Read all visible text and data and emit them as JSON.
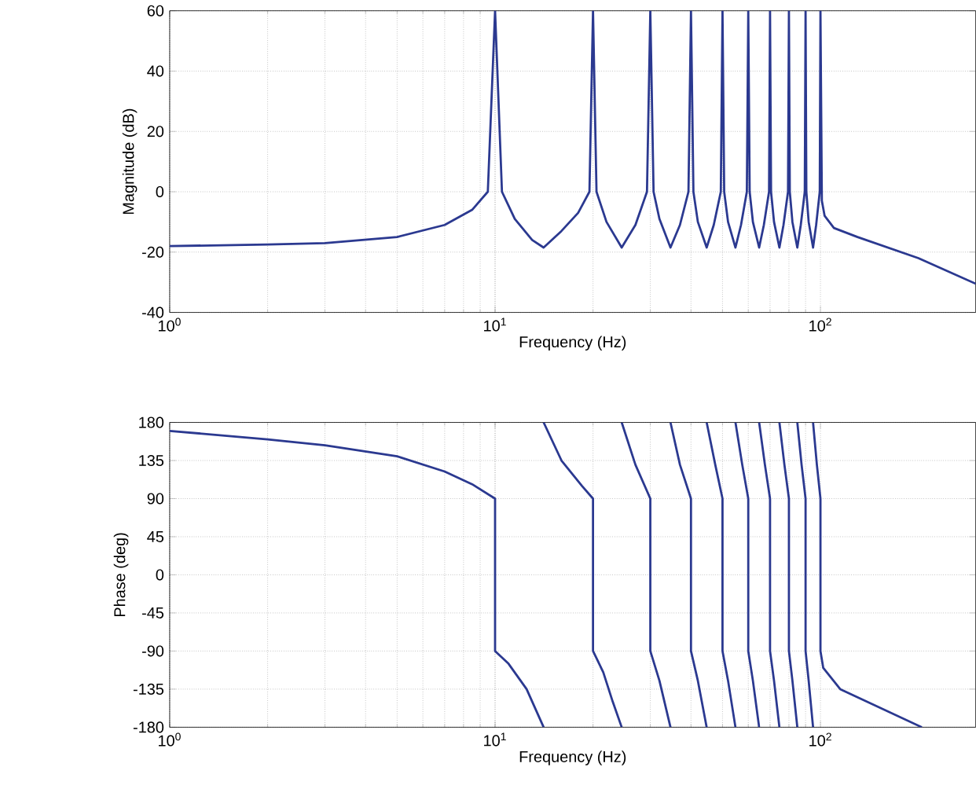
{
  "chart_data": [
    {
      "type": "line",
      "xlabel": "Frequency (Hz)",
      "ylabel": "Magnitude (dB)",
      "log": "x",
      "grid": true,
      "xlim": [
        1,
        300
      ],
      "ylim": [
        -40,
        60
      ],
      "xticks": [
        {
          "value": 1,
          "label": "10$^{0}$"
        },
        {
          "value": 10,
          "label": "10$^{1}$"
        },
        {
          "value": 100,
          "label": "10$^{2}$"
        }
      ],
      "yticks": [
        -40,
        -20,
        0,
        20,
        40,
        60
      ],
      "series": [
        {
          "color": "#2b3990",
          "x": [
            1,
            2,
            3,
            5,
            7,
            8.5,
            9.5,
            10,
            10.5,
            11.5,
            13,
            14.1,
            16,
            18,
            19.5,
            20,
            20.5,
            22,
            24.5,
            27,
            29.3,
            30,
            30.7,
            32,
            34.6,
            37,
            39.3,
            40,
            40.7,
            42,
            44.7,
            47,
            49.4,
            50,
            50.6,
            52,
            54.8,
            57,
            59.4,
            60,
            60.6,
            62,
            64.8,
            67,
            69.5,
            70,
            70.5,
            72,
            74.8,
            77,
            79.5,
            80,
            80.5,
            82,
            84.9,
            87,
            89.5,
            90,
            90.5,
            92,
            94.9,
            97,
            99.5,
            100,
            101,
            103,
            110,
            130,
            200,
            300
          ],
          "values": [
            -18,
            -17.5,
            -17,
            -15,
            -11,
            -6,
            0,
            60,
            0,
            -9,
            -16,
            -18.5,
            -13,
            -7,
            0,
            60,
            0,
            -10,
            -18.5,
            -11,
            0,
            60,
            0,
            -9,
            -18.5,
            -11,
            0,
            60,
            0,
            -10,
            -18.5,
            -11,
            0,
            60,
            0,
            -10,
            -18.5,
            -11,
            0,
            60,
            0,
            -10,
            -18.5,
            -11,
            0,
            60,
            0,
            -10,
            -18.5,
            -11,
            0,
            60,
            0,
            -10,
            -18.5,
            -11,
            0,
            60,
            0,
            -10,
            -18.5,
            -11,
            0,
            60,
            -3,
            -8,
            -12,
            -15,
            -22,
            -30.5
          ]
        }
      ]
    },
    {
      "type": "line",
      "xlabel": "Frequency (Hz)",
      "ylabel": "Phase (deg)",
      "log": "x",
      "grid": true,
      "xlim": [
        1,
        300
      ],
      "ylim": [
        -180,
        180
      ],
      "xticks": [
        {
          "value": 1,
          "label": "10$^{0}$"
        },
        {
          "value": 10,
          "label": "10$^{1}$"
        },
        {
          "value": 100,
          "label": "10$^{2}$"
        }
      ],
      "yticks": [
        -180,
        -135,
        -90,
        -45,
        0,
        45,
        90,
        135,
        180
      ],
      "series": [
        {
          "color": "#2b3990",
          "x": [
            1,
            2,
            3,
            5,
            7,
            8.5,
            10,
            10,
            11,
            12.5,
            14.1
          ],
          "values": [
            170,
            160,
            153,
            140,
            122,
            107,
            90,
            -90,
            -105,
            -135,
            -180
          ]
        },
        {
          "color": "#2b3990",
          "x": [
            14.1,
            16,
            18.5,
            20,
            20,
            21.5,
            23,
            24.5
          ],
          "values": [
            180,
            135,
            105,
            90,
            -90,
            -115,
            -150,
            -180
          ]
        },
        {
          "color": "#2b3990",
          "x": [
            24.5,
            27,
            30,
            30,
            32,
            34.6
          ],
          "values": [
            180,
            130,
            90,
            -90,
            -125,
            -180
          ]
        },
        {
          "color": "#2b3990",
          "x": [
            34.6,
            37,
            40,
            40,
            42,
            44.7
          ],
          "values": [
            180,
            130,
            90,
            -90,
            -125,
            -180
          ]
        },
        {
          "color": "#2b3990",
          "x": [
            44.7,
            47.5,
            50,
            50,
            52,
            54.8
          ],
          "values": [
            180,
            130,
            90,
            -90,
            -125,
            -180
          ]
        },
        {
          "color": "#2b3990",
          "x": [
            54.8,
            57.5,
            60,
            60,
            62,
            64.8
          ],
          "values": [
            180,
            130,
            90,
            -90,
            -125,
            -180
          ]
        },
        {
          "color": "#2b3990",
          "x": [
            64.8,
            67.5,
            70,
            70,
            72,
            74.8
          ],
          "values": [
            180,
            130,
            90,
            -90,
            -125,
            -180
          ]
        },
        {
          "color": "#2b3990",
          "x": [
            74.8,
            77.5,
            80,
            80,
            82,
            84.9
          ],
          "values": [
            180,
            130,
            90,
            -90,
            -125,
            -180
          ]
        },
        {
          "color": "#2b3990",
          "x": [
            84.9,
            87.5,
            90,
            90,
            92,
            94.9
          ],
          "values": [
            180,
            130,
            90,
            -90,
            -125,
            -180
          ]
        },
        {
          "color": "#2b3990",
          "x": [
            94.9,
            97.5,
            100,
            100,
            102,
            115,
            205
          ],
          "values": [
            180,
            130,
            90,
            -90,
            -110,
            -135,
            -180
          ]
        }
      ]
    }
  ]
}
